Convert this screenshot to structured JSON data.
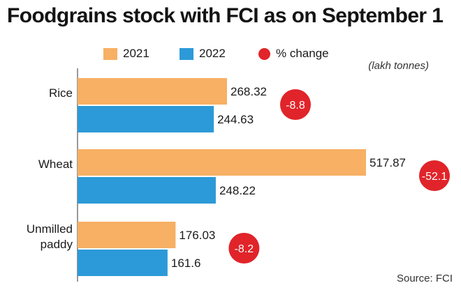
{
  "title": "Foodgrains stock with FCI as on September 1",
  "unit": "(lakh tonnes)",
  "source": "Source: FCI",
  "legend": [
    {
      "label": "2021",
      "kind": "bar",
      "color": "#f7b064"
    },
    {
      "label": "2022",
      "kind": "bar",
      "color": "#2c9ad8"
    },
    {
      "label": "% change",
      "kind": "dot",
      "color": "#e0242a"
    }
  ],
  "chart_data": {
    "type": "bar",
    "orientation": "horizontal",
    "title": "Foodgrains stock with FCI as on September 1",
    "unit": "lakh tonnes",
    "categories": [
      [
        "Rice"
      ],
      [
        "Wheat"
      ],
      [
        "Unmilled",
        "paddy"
      ]
    ],
    "series": [
      {
        "name": "2021",
        "color": "#f7b064",
        "values": [
          268.32,
          517.87,
          176.03
        ],
        "labels": [
          "268.32",
          "517.87",
          "176.03"
        ]
      },
      {
        "name": "2022",
        "color": "#2c9ad8",
        "values": [
          244.63,
          248.22,
          161.6
        ],
        "labels": [
          "244.63",
          "248.22",
          "161.6"
        ]
      }
    ],
    "percent_change": {
      "name": "% change",
      "color": "#e0242a",
      "labels": [
        "-8.8",
        "-52.1",
        "-8.2"
      ]
    },
    "xlim": [
      0,
      517.87
    ],
    "grid": false,
    "legend_position": "top"
  }
}
